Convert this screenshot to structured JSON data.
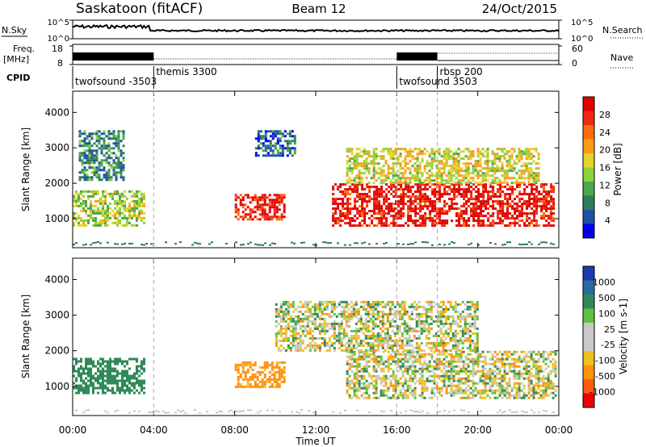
{
  "header": {
    "station": "Saskatoon (fitACF)",
    "beam": "Beam 12",
    "date": "24/Oct/2015"
  },
  "noise_panel": {
    "left_label": "N.Sky",
    "right_label": "N.Search",
    "left_ticks": [
      "10^5",
      "10^0"
    ],
    "right_ticks": [
      "10^5",
      "10^0"
    ]
  },
  "freq_panel": {
    "left_label_1": "Freq.",
    "left_label_2": "[MHz]",
    "right_label": "Nave",
    "left_ticks": [
      "18",
      "8"
    ],
    "right_ticks": [
      "60",
      "0"
    ]
  },
  "cpid": {
    "label": "CPID",
    "segments": [
      {
        "name": "twofsound -3503",
        "start": 0,
        "end": 4
      },
      {
        "name": "themis 3300",
        "start": 4,
        "end": 16
      },
      {
        "name": "twofsound 3503",
        "start": 16,
        "end": 18
      },
      {
        "name": "rbsp 200",
        "start": 18,
        "end": 24
      }
    ]
  },
  "axes": {
    "xlabel": "Time UT",
    "x_ticks": [
      "00:00",
      "04:00",
      "08:00",
      "12:00",
      "16:00",
      "20:00",
      "00:00"
    ],
    "ylabel": "Slant Range [km]",
    "y_ticks": [
      "1000",
      "2000",
      "3000",
      "4000"
    ]
  },
  "power_colorbar": {
    "label": "Power [dB]",
    "ticks": [
      "4",
      "8",
      "12",
      "16",
      "20",
      "24",
      "28"
    ],
    "colors": [
      "#0000ee",
      "#1f4fa8",
      "#2e7d5a",
      "#4aa84a",
      "#8fd23c",
      "#e6d22a",
      "#ff9a18",
      "#ff6a10",
      "#f02a10",
      "#e00000"
    ]
  },
  "velocity_colorbar": {
    "label": "Velocity [m s-1]",
    "ticks": [
      "1000",
      "500",
      "100",
      "25",
      "-25",
      "-100",
      "-500",
      "-1000"
    ],
    "colors": [
      "#1a3ab0",
      "#2a6aa0",
      "#2f8a58",
      "#64c040",
      "#c8c8c8",
      "#c8c8c8",
      "#f0c020",
      "#ff9010",
      "#ff5a10",
      "#ee0000"
    ]
  },
  "chart_data": {
    "type": "heatmap",
    "x_range_hours": [
      0,
      24
    ],
    "y_range_km": [
      180,
      4600
    ],
    "dashed_markers_hours": [
      4,
      16,
      18
    ],
    "power_regions": [
      {
        "t0": 0.0,
        "t1": 3.5,
        "r0": 800,
        "r1": 1800,
        "power_db": 14
      },
      {
        "t0": 0.3,
        "t1": 2.5,
        "r0": 2100,
        "r1": 3500,
        "power_db": 8
      },
      {
        "t0": 8.0,
        "t1": 10.5,
        "r0": 1000,
        "r1": 1700,
        "power_db": 26
      },
      {
        "t0": 9.0,
        "t1": 11.0,
        "r0": 2800,
        "r1": 3500,
        "power_db": 6
      },
      {
        "t0": 12.8,
        "t1": 23.8,
        "r0": 800,
        "r1": 2000,
        "power_db": 28
      },
      {
        "t0": 13.5,
        "t1": 23.0,
        "r0": 2000,
        "r1": 3000,
        "power_db": 16
      }
    ],
    "velocity_regions": [
      {
        "t0": 0.0,
        "t1": 3.5,
        "r0": 800,
        "r1": 1800,
        "velocity": 300
      },
      {
        "t0": 8.0,
        "t1": 10.5,
        "r0": 1000,
        "r1": 1700,
        "velocity": -200
      },
      {
        "t0": 13.5,
        "t1": 23.8,
        "r0": 700,
        "r1": 2000,
        "velocity": 0
      },
      {
        "t0": 10.0,
        "t1": 20.0,
        "r0": 2000,
        "r1": 3400,
        "velocity": 0
      }
    ]
  }
}
